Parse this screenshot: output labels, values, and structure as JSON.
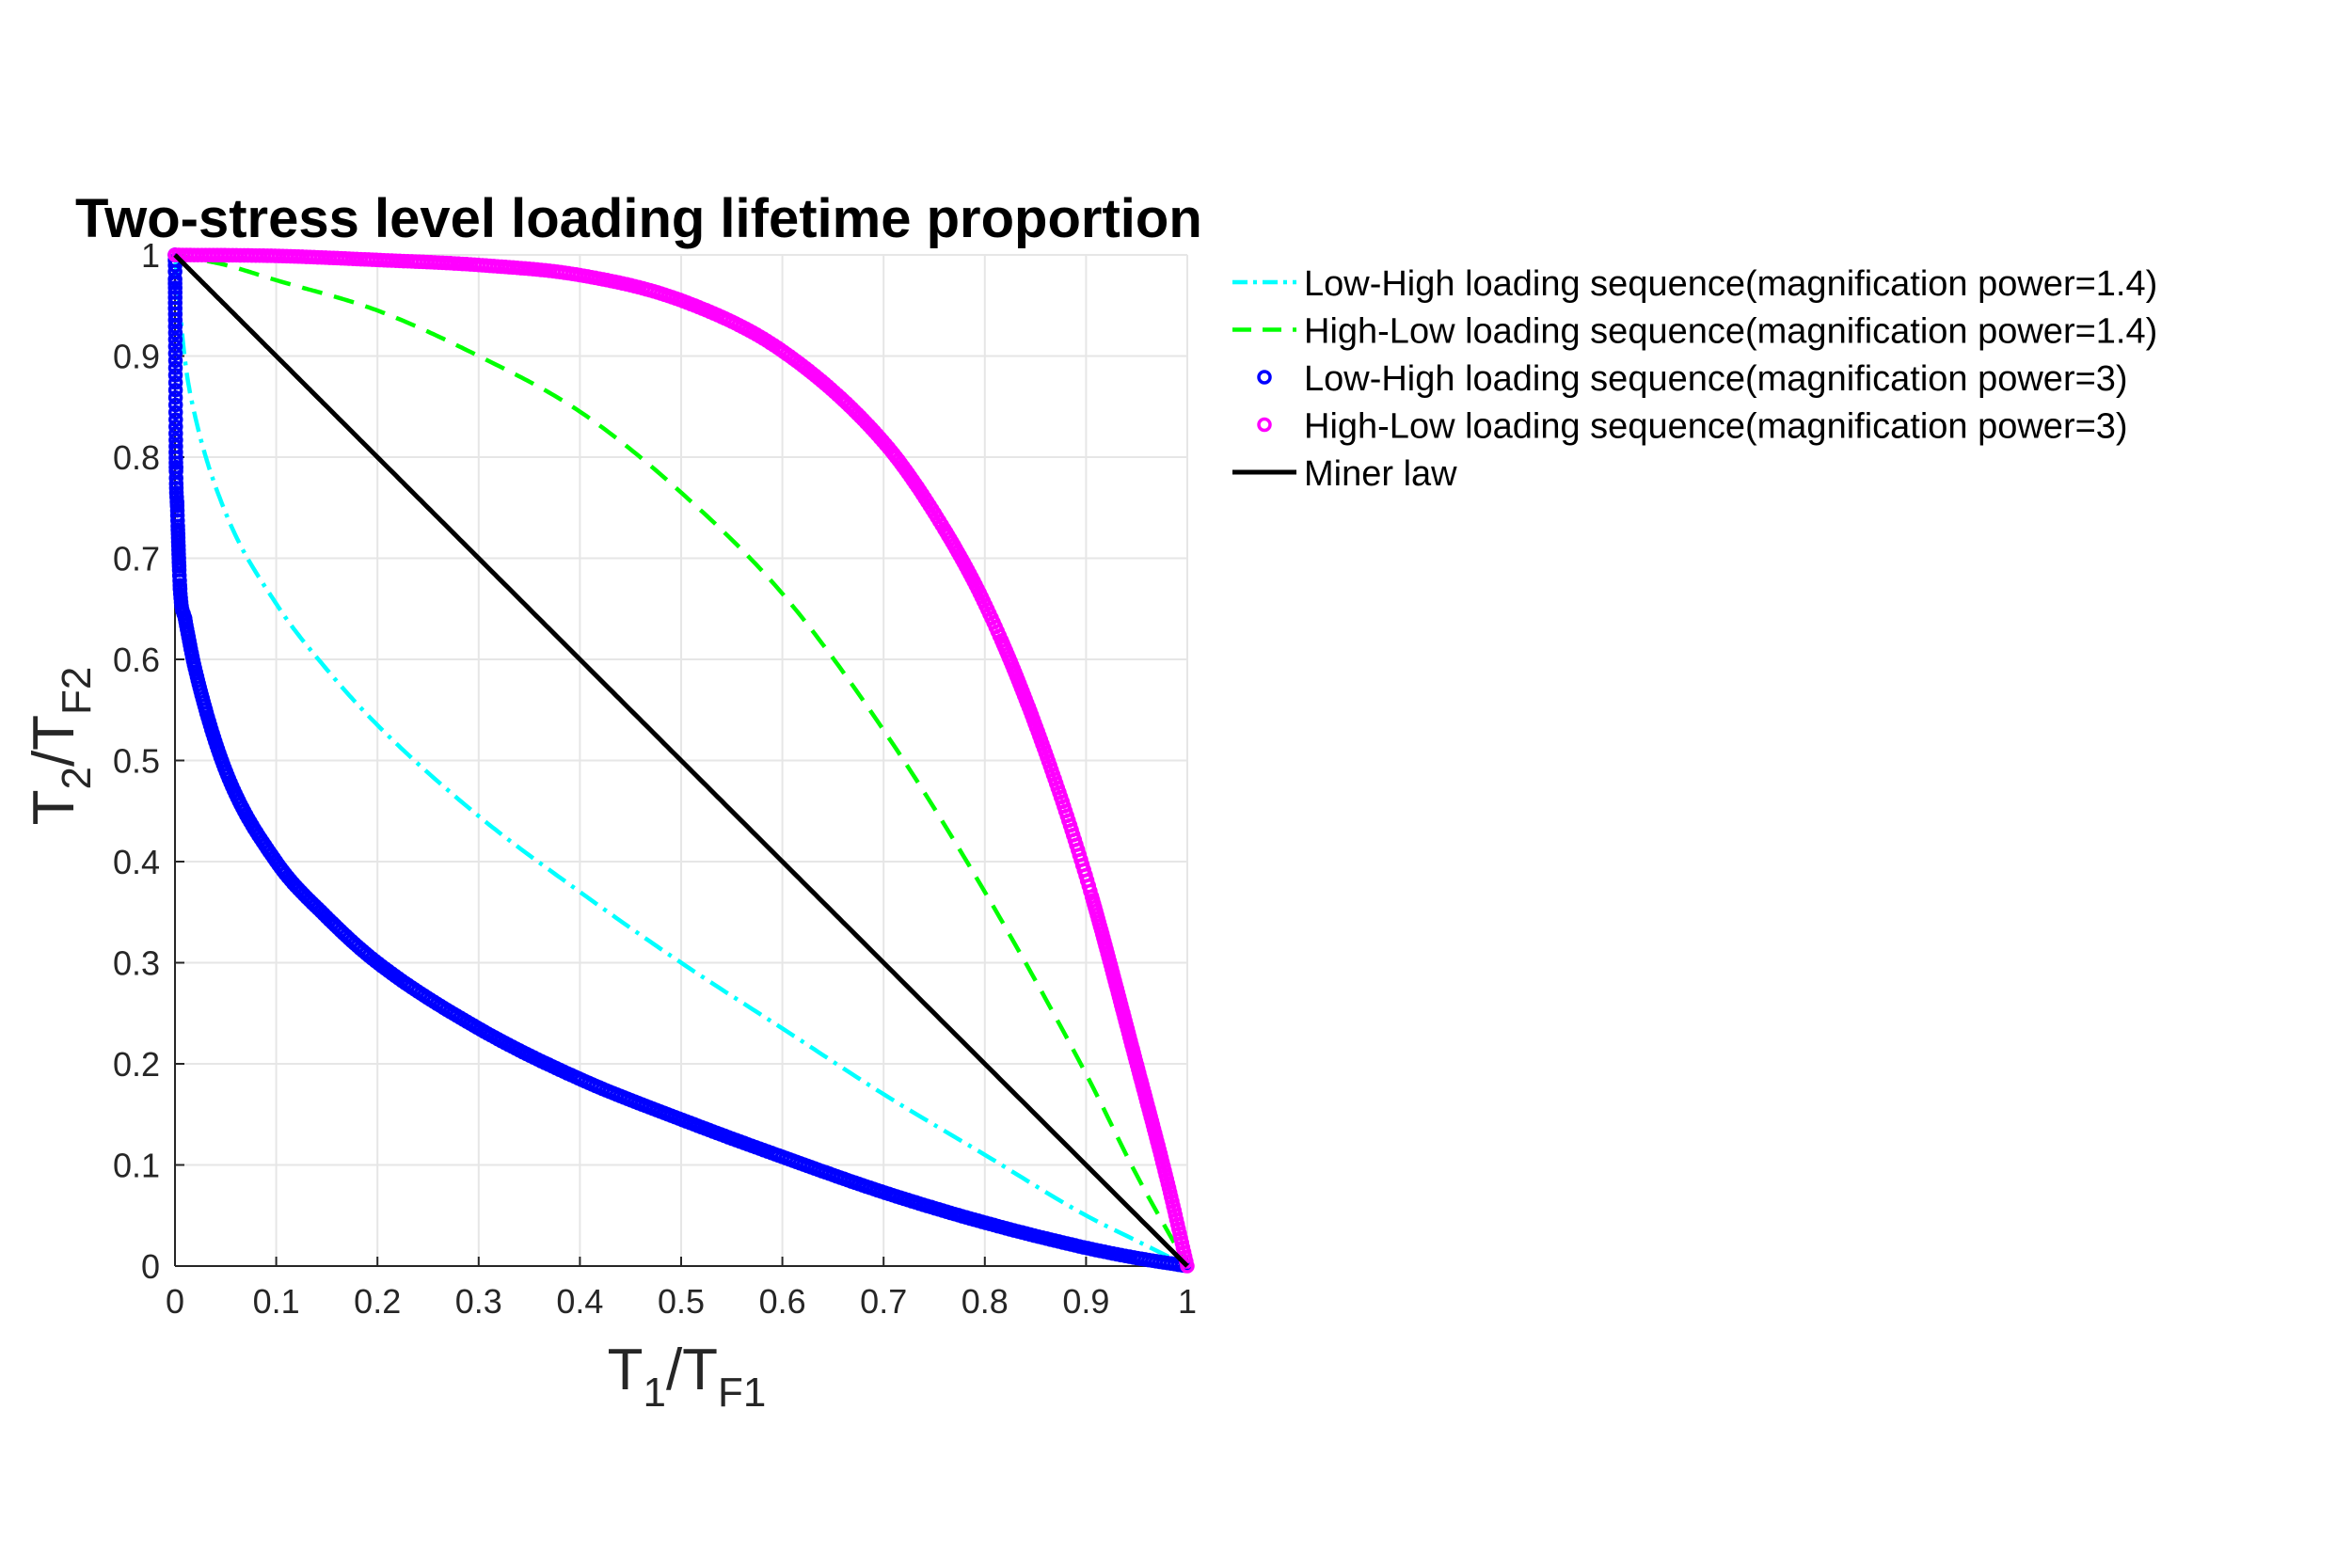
{
  "chart_data": {
    "type": "line",
    "title": "Two-stress level loading lifetime proportion",
    "xlabel": {
      "base": "T",
      "sub": "1",
      "sep": "/T",
      "sub2": "F1"
    },
    "ylabel": {
      "base": "T",
      "sub": "2",
      "sep": "/T",
      "sub2": "F2"
    },
    "xlim": [
      0,
      1
    ],
    "ylim": [
      0,
      1
    ],
    "xticks": [
      "0",
      "0.1",
      "0.2",
      "0.3",
      "0.4",
      "0.5",
      "0.6",
      "0.7",
      "0.8",
      "0.9",
      "1"
    ],
    "yticks": [
      "0",
      "0.1",
      "0.2",
      "0.3",
      "0.4",
      "0.5",
      "0.6",
      "0.7",
      "0.8",
      "0.9",
      "1"
    ],
    "grid": true,
    "legend_position": "outside-right-top",
    "series": [
      {
        "name": "Low-High loading sequence(magnification power=1.4)",
        "color": "#00ffff",
        "style": "dash-dot",
        "x": [
          0,
          0.01,
          0.02,
          0.05,
          0.1,
          0.15,
          0.2,
          0.3,
          0.4,
          0.5,
          0.6,
          0.7,
          0.8,
          0.9,
          0.95,
          1
        ],
        "y": [
          1,
          0.895,
          0.84,
          0.745,
          0.655,
          0.59,
          0.535,
          0.445,
          0.37,
          0.3,
          0.235,
          0.17,
          0.11,
          0.05,
          0.025,
          0
        ]
      },
      {
        "name": "High-Low loading sequence(magnification power=1.4)",
        "color": "#00ff00",
        "style": "dashed",
        "x": [
          0,
          0.05,
          0.1,
          0.2,
          0.3,
          0.4,
          0.5,
          0.6,
          0.7,
          0.8,
          0.9,
          0.95,
          1
        ],
        "y": [
          1,
          0.99,
          0.975,
          0.945,
          0.9,
          0.845,
          0.765,
          0.665,
          0.53,
          0.37,
          0.19,
          0.09,
          0
        ]
      },
      {
        "name": "Low-High loading sequence(magnification power=3)",
        "color": "#0000ff",
        "style": "markers",
        "x": [
          0,
          0.001,
          0.002,
          0.005,
          0.01,
          0.02,
          0.05,
          0.1,
          0.15,
          0.2,
          0.3,
          0.4,
          0.5,
          0.6,
          0.7,
          0.8,
          0.9,
          0.95,
          1
        ],
        "y": [
          1,
          0.79,
          0.755,
          0.67,
          0.64,
          0.59,
          0.49,
          0.4,
          0.345,
          0.3,
          0.235,
          0.185,
          0.145,
          0.108,
          0.073,
          0.043,
          0.018,
          0.008,
          0
        ]
      },
      {
        "name": "High-Low loading sequence(magnification power=3)",
        "color": "#ff00ff",
        "style": "markers",
        "x": [
          0,
          0.1,
          0.2,
          0.3,
          0.4,
          0.5,
          0.6,
          0.7,
          0.75,
          0.8,
          0.85,
          0.9,
          0.95,
          0.98,
          1
        ],
        "y": [
          1,
          0.999,
          0.995,
          0.99,
          0.98,
          0.955,
          0.905,
          0.815,
          0.745,
          0.655,
          0.535,
          0.385,
          0.2,
          0.085,
          0
        ]
      },
      {
        "name": "Miner law",
        "color": "#000000",
        "style": "solid",
        "x": [
          0,
          1
        ],
        "y": [
          1,
          0
        ]
      }
    ]
  }
}
